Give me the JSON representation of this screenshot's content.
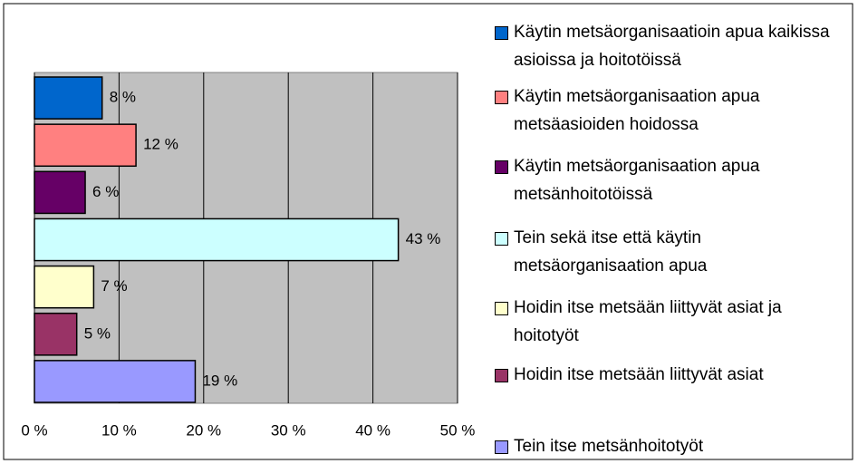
{
  "chart_data": {
    "type": "hbar",
    "series": [
      {
        "name": "Käytin metsäorganisaatioin apua kaikissa asioissa ja hoitotöissä",
        "color": "#0066cc",
        "values": [
          8
        ],
        "value_labels": [
          "8 %"
        ]
      },
      {
        "name": "Käytin metsäorganisaation apua metsäasioiden hoidossa",
        "color": "#ff8080",
        "values": [
          12
        ],
        "value_labels": [
          "12 %"
        ]
      },
      {
        "name": "Käytin metsäorganisaation apua metsänhoitotöissä",
        "color": "#660066",
        "values": [
          6
        ],
        "value_labels": [
          "6 %"
        ]
      },
      {
        "name": "Tein sekä itse että käytin metsäorganisaation apua",
        "color": "#ccffff",
        "values": [
          43
        ],
        "value_labels": [
          "43 %"
        ]
      },
      {
        "name": "Hoidin itse metsään liittyvät asiat ja hoitotyöt",
        "color": "#ffffcc",
        "values": [
          7
        ],
        "value_labels": [
          "7 %"
        ]
      },
      {
        "name": "Hoidin itse metsään liittyvät asiat",
        "color": "#993366",
        "values": [
          5
        ],
        "value_labels": [
          "5 %"
        ]
      },
      {
        "name": "Tein itse metsänhoitotyöt",
        "color": "#9999ff",
        "values": [
          19
        ],
        "value_labels": [
          "19 %"
        ]
      }
    ],
    "xlim": [
      0,
      50
    ],
    "xticks": [
      {
        "value": 0,
        "label": "0 %"
      },
      {
        "value": 10,
        "label": "10 %"
      },
      {
        "value": 20,
        "label": "20 %"
      },
      {
        "value": 30,
        "label": "30 %"
      },
      {
        "value": 40,
        "label": "40 %"
      },
      {
        "value": 50,
        "label": "50 %"
      }
    ],
    "grid": true,
    "legend": "right"
  }
}
